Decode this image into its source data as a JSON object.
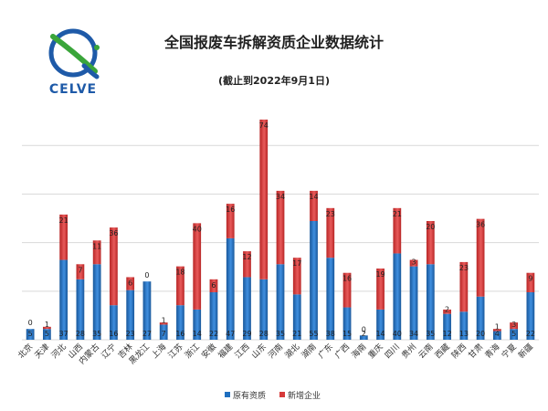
{
  "logo": {
    "text": "CELVE",
    "icon": "celve-logo"
  },
  "chart_data": {
    "type": "bar",
    "stacked": true,
    "title": "全国报废车拆解资质企业数据统计",
    "subtitle": "(截止到2022年9月1日)",
    "xlabel": "",
    "ylabel": "",
    "grid": true,
    "legend_position": "bottom",
    "categories": [
      "北京",
      "天津",
      "河北",
      "山西",
      "内蒙古",
      "辽宁",
      "吉林",
      "黑龙江",
      "上海",
      "江苏",
      "浙江",
      "安徽",
      "福建",
      "江西",
      "山东",
      "河南",
      "湖北",
      "湖南",
      "广东",
      "广西",
      "海南",
      "重庆",
      "四川",
      "贵州",
      "云南",
      "西藏",
      "陕西",
      "甘肃",
      "青海",
      "宁夏",
      "新疆"
    ],
    "series": [
      {
        "name": "原有资质",
        "color": "#1f6fbf",
        "values": [
          5,
          5,
          37,
          28,
          35,
          16,
          23,
          27,
          7,
          16,
          14,
          22,
          47,
          29,
          28,
          35,
          21,
          55,
          38,
          15,
          2,
          14,
          40,
          34,
          35,
          12,
          13,
          20,
          4,
          5,
          22
        ]
      },
      {
        "name": "新增企业",
        "color": "#d63a3a",
        "values": [
          0,
          1,
          21,
          7,
          11,
          36,
          6,
          0,
          1,
          18,
          40,
          6,
          16,
          12,
          74,
          34,
          17,
          14,
          23,
          16,
          0,
          19,
          21,
          3,
          20,
          2,
          23,
          36,
          1,
          3,
          9
        ]
      }
    ],
    "ylim": [
      0,
      110
    ]
  }
}
